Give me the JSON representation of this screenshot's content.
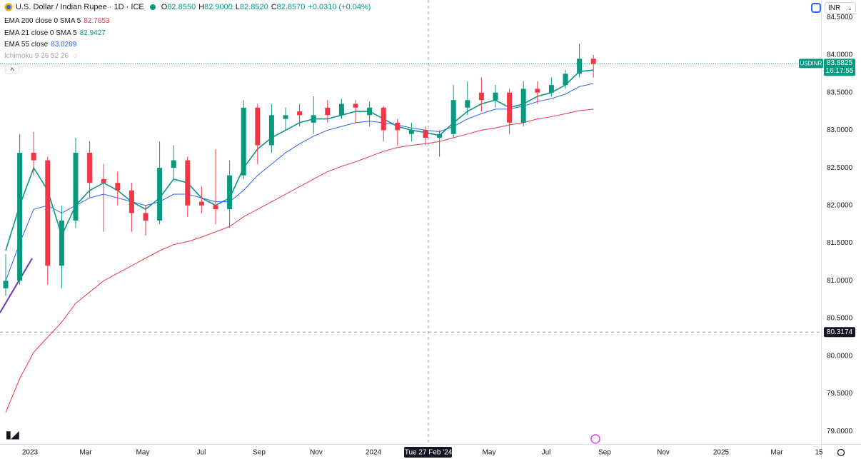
{
  "header": {
    "symbol": "U.S. Dollar / Indian Rupee · 1D · ICE",
    "ohlc": [
      {
        "label": "O",
        "value": "82.8550"
      },
      {
        "label": "H",
        "value": "82.9000"
      },
      {
        "label": "L",
        "value": "82.8520"
      },
      {
        "label": "C",
        "value": "82.8570"
      }
    ],
    "change": "+0.0310 (+0.04%)"
  },
  "currency": "INR",
  "chart_data": {
    "type": "candlestick",
    "up_color": "#089981",
    "down_color": "#f23645",
    "ohlc": [
      [
        80.9,
        81.35,
        80.8,
        81.0
      ],
      [
        81.0,
        82.95,
        80.95,
        82.7
      ],
      [
        82.7,
        82.98,
        82.4,
        82.6
      ],
      [
        82.6,
        82.65,
        80.95,
        81.2
      ],
      [
        81.2,
        82.0,
        80.9,
        81.8
      ],
      [
        81.8,
        82.9,
        81.7,
        82.7
      ],
      [
        82.7,
        82.85,
        82.1,
        82.3
      ],
      [
        82.35,
        82.55,
        81.65,
        82.3
      ],
      [
        82.3,
        82.45,
        82.0,
        82.2
      ],
      [
        82.2,
        82.3,
        81.65,
        81.9
      ],
      [
        81.9,
        82.0,
        81.6,
        81.8
      ],
      [
        81.8,
        82.85,
        81.75,
        82.5
      ],
      [
        82.5,
        82.8,
        82.35,
        82.6
      ],
      [
        82.6,
        82.65,
        81.85,
        82.0
      ],
      [
        82.05,
        82.25,
        81.9,
        82.0
      ],
      [
        82.0,
        82.75,
        81.75,
        81.95
      ],
      [
        81.95,
        82.6,
        81.7,
        82.4
      ],
      [
        82.4,
        83.4,
        82.35,
        83.3
      ],
      [
        83.3,
        83.35,
        82.55,
        82.8
      ],
      [
        82.8,
        83.35,
        82.7,
        83.2
      ],
      [
        83.15,
        83.3,
        83.0,
        83.2
      ],
      [
        83.25,
        83.35,
        83.05,
        83.2
      ],
      [
        83.1,
        83.45,
        82.95,
        83.2
      ],
      [
        83.3,
        83.4,
        83.1,
        83.2
      ],
      [
        83.2,
        83.42,
        83.15,
        83.35
      ],
      [
        83.35,
        83.4,
        83.1,
        83.3
      ],
      [
        83.2,
        83.38,
        83.05,
        83.3
      ],
      [
        83.3,
        83.32,
        82.85,
        83.0
      ],
      [
        83.1,
        83.15,
        82.8,
        83.0
      ],
      [
        82.95,
        83.1,
        82.85,
        83.0
      ],
      [
        83.0,
        83.05,
        82.8,
        82.9
      ],
      [
        82.9,
        83.0,
        82.65,
        82.95
      ],
      [
        82.95,
        83.6,
        82.9,
        83.4
      ],
      [
        83.3,
        83.65,
        83.2,
        83.4
      ],
      [
        83.5,
        83.7,
        83.25,
        83.4
      ],
      [
        83.4,
        83.6,
        83.3,
        83.5
      ],
      [
        83.5,
        83.55,
        82.95,
        83.1
      ],
      [
        83.1,
        83.65,
        83.05,
        83.55
      ],
      [
        83.55,
        83.65,
        83.35,
        83.5
      ],
      [
        83.5,
        83.7,
        83.45,
        83.6
      ],
      [
        83.6,
        83.8,
        83.55,
        83.75
      ],
      [
        83.75,
        84.15,
        83.7,
        83.95
      ],
      [
        83.95,
        84.0,
        83.7,
        83.88
      ]
    ],
    "series": [
      {
        "name": "EMA 200 close 0 SMA 5",
        "last_value": 82.7653,
        "color": "#f23645",
        "values": [
          79.25,
          79.7,
          80.05,
          80.25,
          80.45,
          80.7,
          80.85,
          81.0,
          81.1,
          81.2,
          81.3,
          81.4,
          81.48,
          81.52,
          81.58,
          81.65,
          81.72,
          81.85,
          81.95,
          82.05,
          82.15,
          82.25,
          82.35,
          82.45,
          82.52,
          82.58,
          82.65,
          82.72,
          82.77,
          82.8,
          82.82,
          82.85,
          82.9,
          82.95,
          83.0,
          83.03,
          83.07,
          83.1,
          83.15,
          83.18,
          83.22,
          83.26,
          83.28
        ]
      },
      {
        "name": "EMA 21 close 0 SMA 5",
        "last_value": 82.9427,
        "color": "#089981",
        "values": [
          81.4,
          82.0,
          82.5,
          82.2,
          81.6,
          82.0,
          82.2,
          82.3,
          82.2,
          82.05,
          81.95,
          82.1,
          82.35,
          82.3,
          82.1,
          82.0,
          82.1,
          82.5,
          82.75,
          82.9,
          83.0,
          83.1,
          83.15,
          83.15,
          83.2,
          83.25,
          83.25,
          83.15,
          83.05,
          83.0,
          82.97,
          82.93,
          83.1,
          83.25,
          83.35,
          83.4,
          83.3,
          83.35,
          83.45,
          83.5,
          83.6,
          83.78,
          83.8
        ]
      },
      {
        "name": "EMA 55 close",
        "last_value": 83.0269,
        "color": "#2962ff",
        "values": [
          81.0,
          81.5,
          81.95,
          82.0,
          81.9,
          82.0,
          82.1,
          82.15,
          82.1,
          82.05,
          82.0,
          82.05,
          82.15,
          82.15,
          82.1,
          82.05,
          82.05,
          82.2,
          82.4,
          82.55,
          82.7,
          82.82,
          82.92,
          83.0,
          83.05,
          83.1,
          83.12,
          83.1,
          83.07,
          83.03,
          83.0,
          82.98,
          83.05,
          83.15,
          83.22,
          83.28,
          83.28,
          83.32,
          83.38,
          83.42,
          83.48,
          83.58,
          83.62
        ]
      }
    ],
    "indicator_hidden": "Ichimoku 9 26 52 26",
    "ylim": [
      78.85,
      84.73
    ],
    "yticks": [
      {
        "value": 84.5,
        "label": "84.5000"
      },
      {
        "value": 84.0,
        "label": "84.0000"
      },
      {
        "value": 83.5,
        "label": "83.5000"
      },
      {
        "value": 83.0,
        "label": "83.0000"
      },
      {
        "value": 82.5,
        "label": "82.5000"
      },
      {
        "value": 82.0,
        "label": "82.0000"
      },
      {
        "value": 81.5,
        "label": "81.5000"
      },
      {
        "value": 81.0,
        "label": "81.0000"
      },
      {
        "value": 80.5,
        "label": "80.5000"
      },
      {
        "value": 80.0,
        "label": "80.0000"
      },
      {
        "value": 79.5,
        "label": "79.5000"
      },
      {
        "value": 79.0,
        "label": "79.0000"
      }
    ],
    "time_labels": [
      "2023",
      "Mar",
      "May",
      "Jul",
      "Sep",
      "Nov",
      "2024",
      "May",
      "Jul",
      "Sep",
      "Nov",
      "2025",
      "Mar",
      "15"
    ],
    "last_price": {
      "symbol": "USDINR",
      "value": 83.8825,
      "countdown": "16:17:55"
    },
    "crosshair": {
      "x_label": "Tue 27 Feb '24",
      "y": 80.3174
    }
  }
}
